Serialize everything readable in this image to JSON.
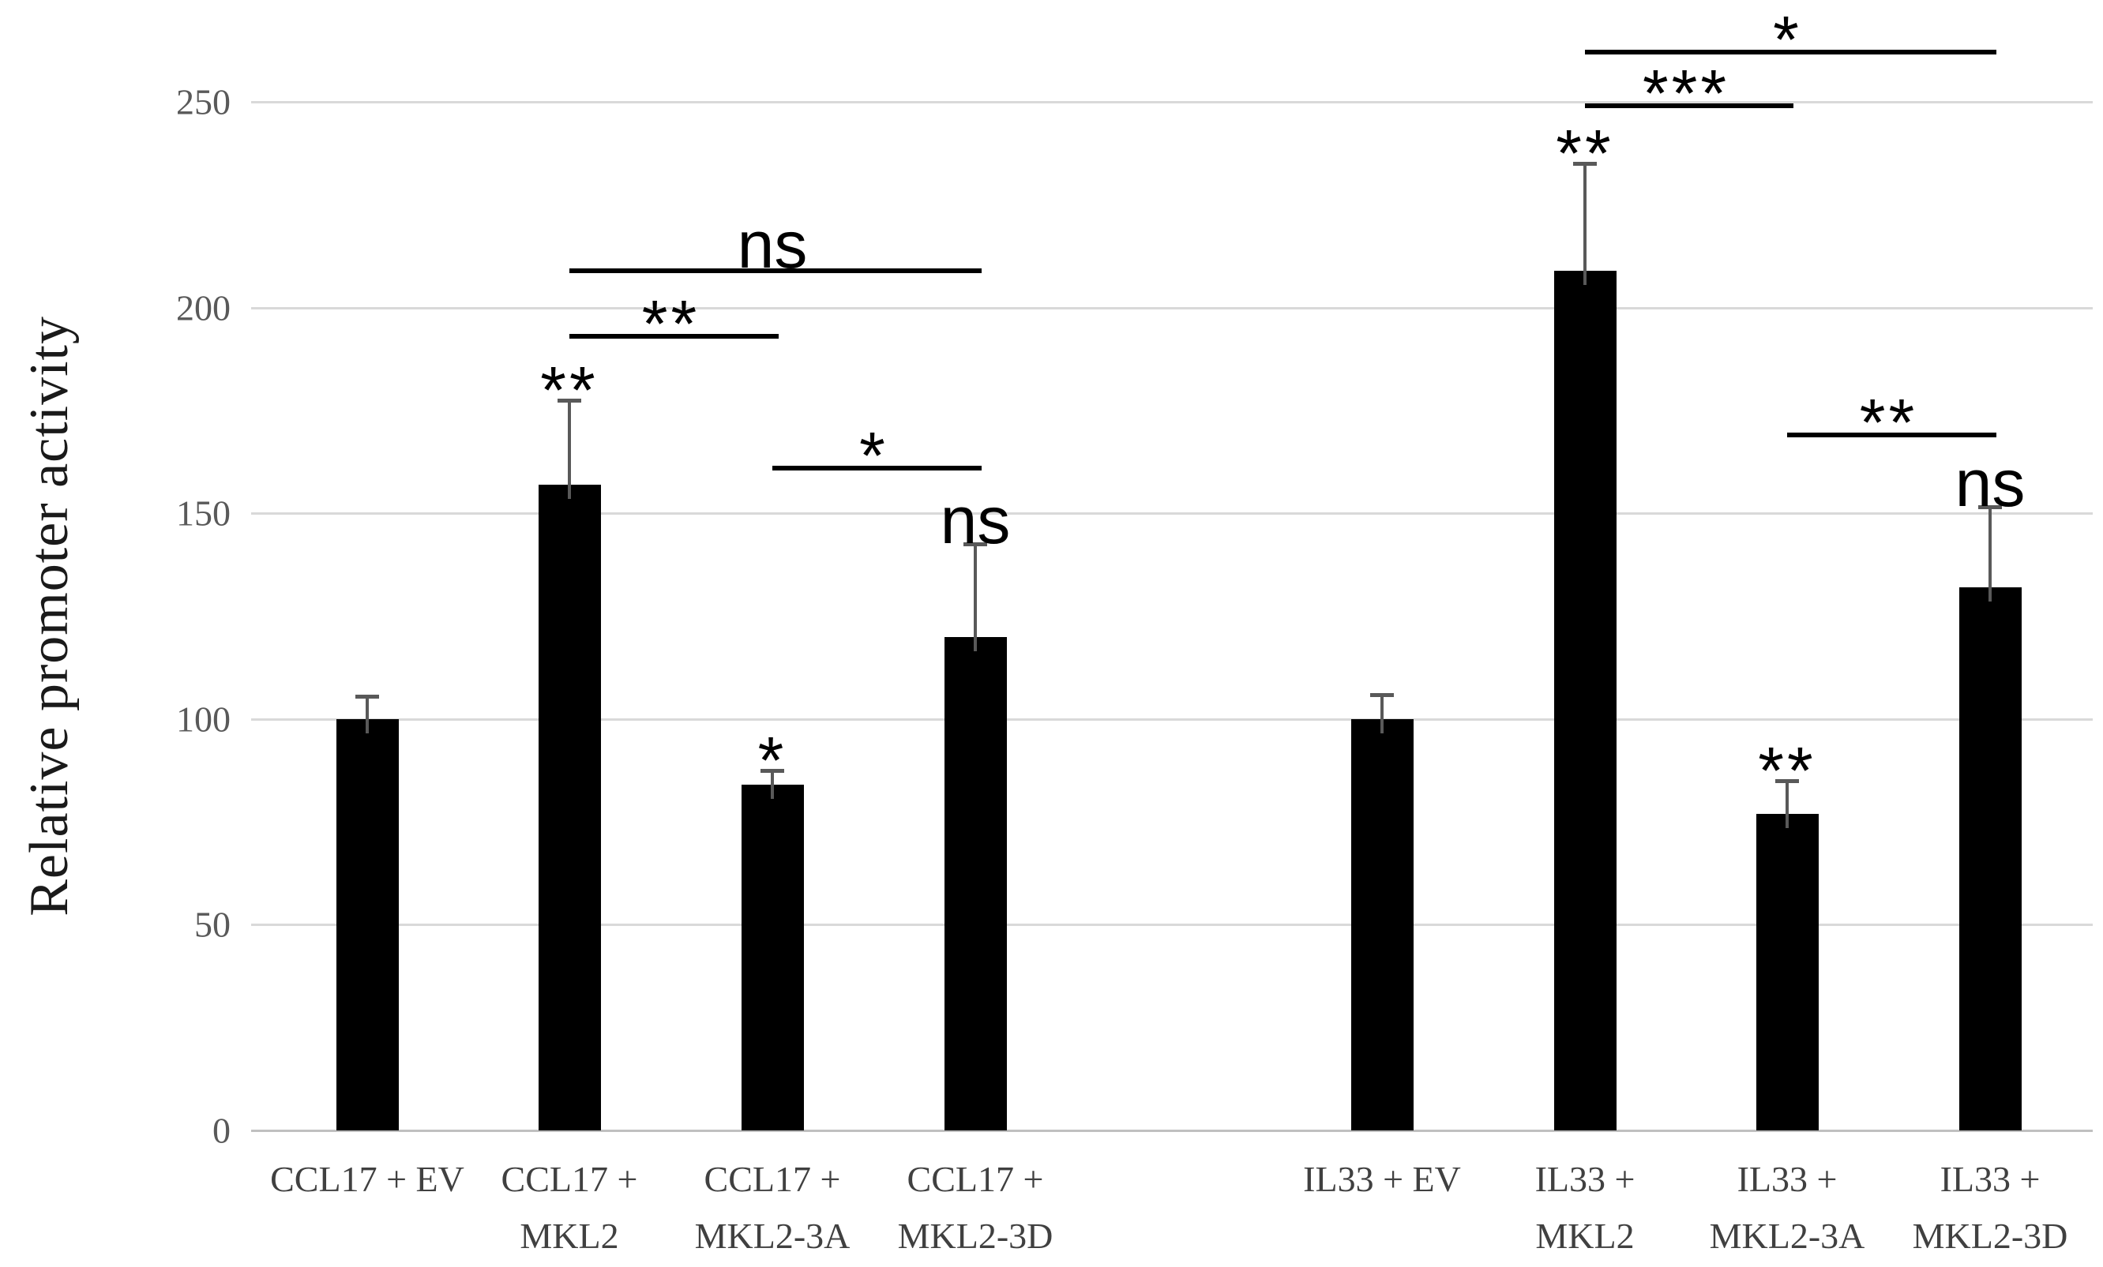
{
  "chart_data": {
    "type": "bar",
    "title": "",
    "xlabel": "",
    "ylabel": "Relative promoter activity",
    "ylim": [
      0,
      250
    ],
    "yticks": [
      0,
      50,
      100,
      150,
      200,
      250
    ],
    "grid": true,
    "legend_position": "none",
    "categories": [
      "CCL17 + EV",
      "CCL17 + MKL2",
      "CCL17 + MKL2-3A",
      "CCL17 + MKL2-3D",
      "IL33 + EV",
      "IL33 + MKL2",
      "IL33 + MKL2-3A",
      "IL33 + MKL2-3D"
    ],
    "x_tick_lines": [
      [
        "CCL17 + EV"
      ],
      [
        "CCL17 +",
        "MKL2"
      ],
      [
        "CCL17 +",
        "MKL2-3A"
      ],
      [
        "CCL17 +",
        "MKL2-3D"
      ],
      [
        "IL33 + EV"
      ],
      [
        "IL33 +",
        "MKL2"
      ],
      [
        "IL33 +",
        "MKL2-3A"
      ],
      [
        "IL33 +",
        "MKL2-3D"
      ]
    ],
    "series": [
      {
        "name": "Relative promoter activity",
        "values": [
          100,
          157,
          84,
          120,
          100,
          209,
          77,
          132
        ],
        "errors_plus": [
          5.5,
          20.5,
          3.5,
          22.5,
          6,
          26,
          8,
          19.5
        ]
      }
    ],
    "bar_significance": [
      "",
      "**",
      "*",
      "ns",
      "",
      "**",
      "**",
      "ns"
    ],
    "comparisons": [
      {
        "from": 1,
        "to": 3,
        "label": "ns",
        "y_value": 209
      },
      {
        "from": 1,
        "to": 2,
        "label": "**",
        "y_value": 193
      },
      {
        "from": 2,
        "to": 3,
        "label": "*",
        "y_value": 161
      },
      {
        "from": 5,
        "to": 7,
        "label": "*",
        "y_value": 262
      },
      {
        "from": 5,
        "to": 6,
        "label": "***",
        "y_value": 249
      },
      {
        "from": 6,
        "to": 7,
        "label": "**",
        "y_value": 169
      }
    ],
    "colors": {
      "bar": "#000000",
      "gridline": "#d9d9d9",
      "axis_line": "#c0c0c0",
      "error_bar": "#595959",
      "y_tick_label": "#595959",
      "x_tick_label": "#404040",
      "annotation": "#000000",
      "background": "#ffffff"
    }
  }
}
